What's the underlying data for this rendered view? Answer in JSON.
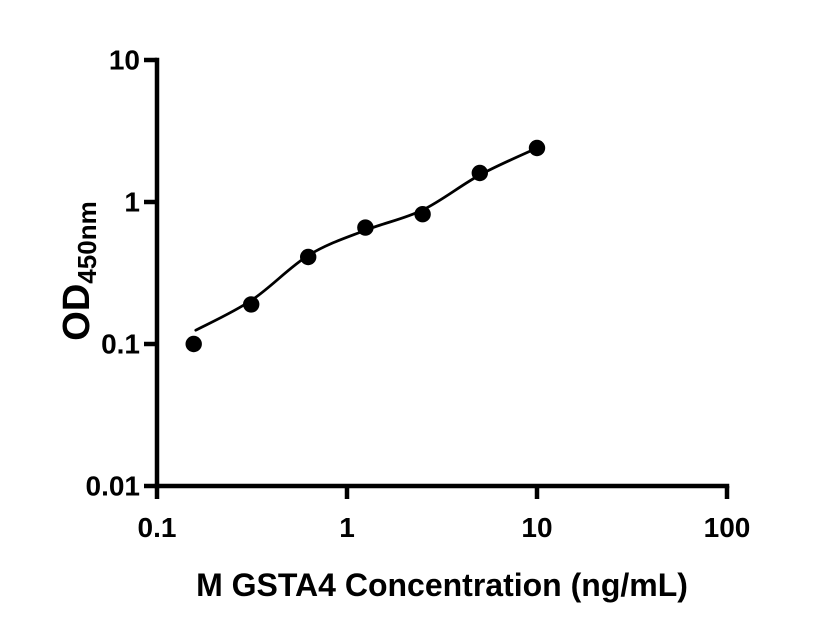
{
  "chart_data": {
    "type": "scatter",
    "title": "",
    "xlabel": "M GSTA4 Concentration (ng/mL)",
    "ylabel": "OD450nm",
    "ylabel_main": "OD",
    "ylabel_sub": "450nm",
    "x_scale": "log",
    "y_scale": "log",
    "xlim": [
      0.1,
      100
    ],
    "ylim": [
      0.01,
      10
    ],
    "grid": false,
    "legend": false,
    "x_ticks": [
      {
        "value": 0.1,
        "label": "0.1"
      },
      {
        "value": 1,
        "label": "1"
      },
      {
        "value": 10,
        "label": "10"
      },
      {
        "value": 100,
        "label": "100"
      }
    ],
    "y_ticks": [
      {
        "value": 10,
        "label": "10"
      },
      {
        "value": 1,
        "label": "1"
      },
      {
        "value": 0.1,
        "label": "0.1"
      },
      {
        "value": 0.01,
        "label": "0.01"
      }
    ],
    "points": [
      {
        "x": 0.156,
        "y": 0.1
      },
      {
        "x": 0.313,
        "y": 0.19
      },
      {
        "x": 0.625,
        "y": 0.41
      },
      {
        "x": 1.25,
        "y": 0.66
      },
      {
        "x": 2.5,
        "y": 0.82
      },
      {
        "x": 5,
        "y": 1.6
      },
      {
        "x": 10,
        "y": 2.4
      }
    ],
    "fit_curve": [
      {
        "x": 0.16,
        "y": 0.125
      },
      {
        "x": 0.316,
        "y": 0.204
      },
      {
        "x": 0.63,
        "y": 0.423
      },
      {
        "x": 1.26,
        "y": 0.635
      },
      {
        "x": 2.5,
        "y": 0.878
      },
      {
        "x": 5,
        "y": 1.55
      },
      {
        "x": 10,
        "y": 2.4
      }
    ],
    "colors": {
      "points": "#000000",
      "fit_line": "#000000",
      "axis": "#000000",
      "labels": "#000000",
      "background": "#ffffff"
    }
  }
}
